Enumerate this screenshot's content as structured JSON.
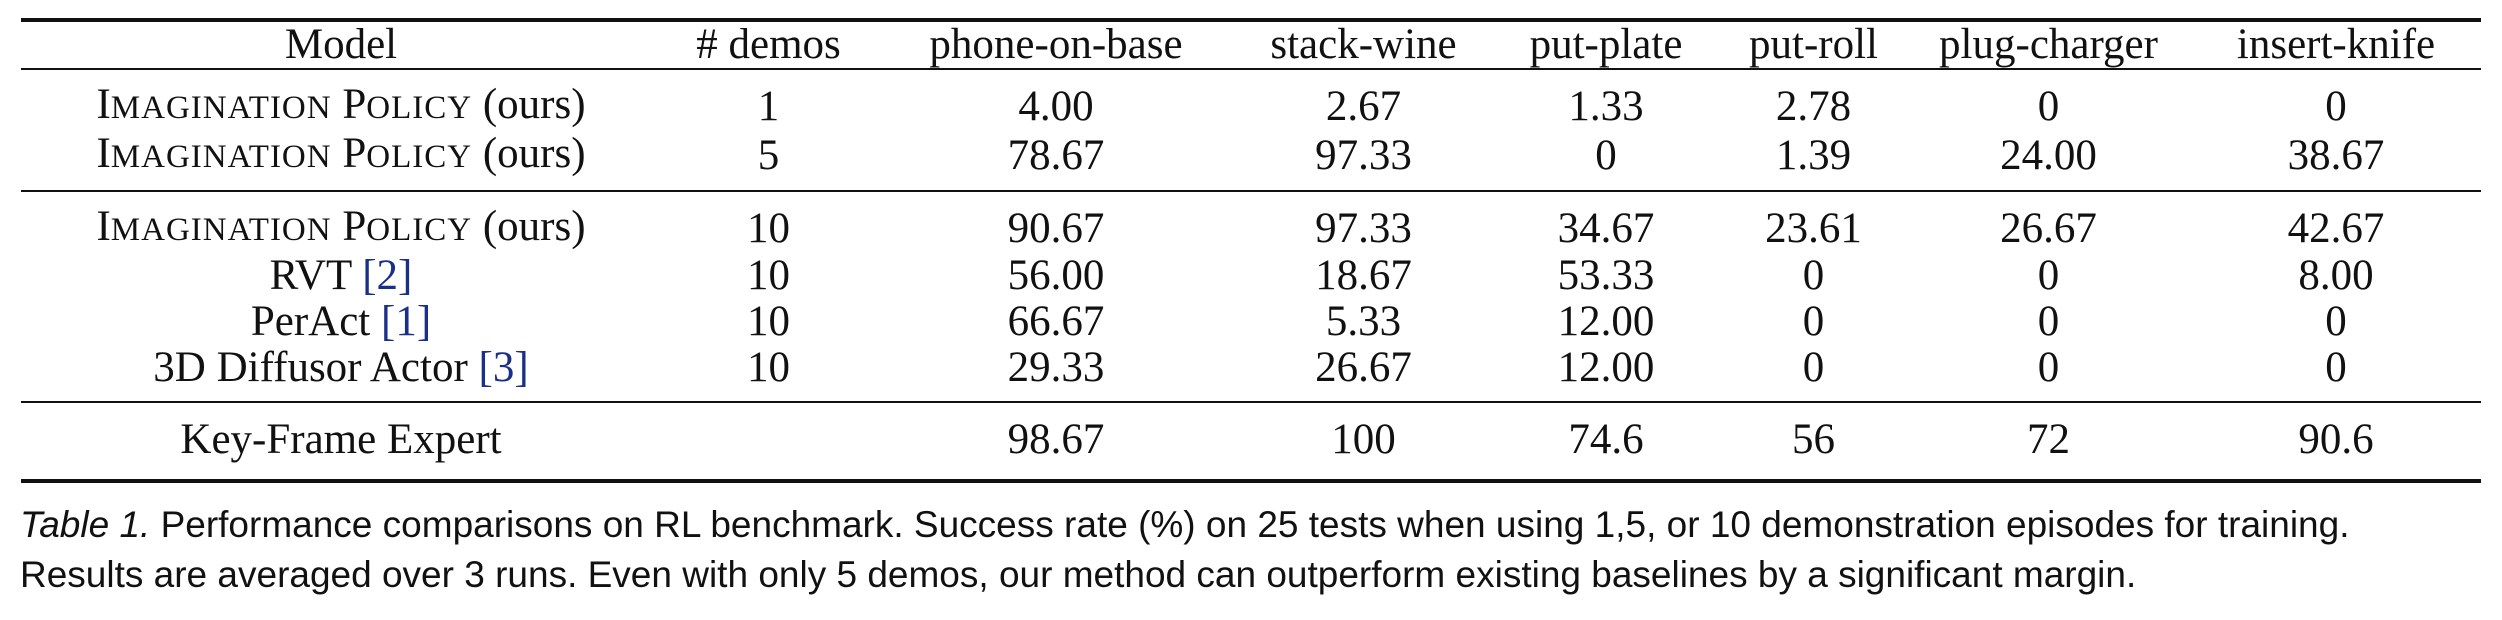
{
  "table": {
    "headers": [
      "Model",
      "# demos",
      "phone-on-base",
      "stack-wine",
      "put-plate",
      "put-roll",
      "plug-charger",
      "insert-knife"
    ],
    "groups": [
      {
        "rows": [
          {
            "model_sc": {
              "I": "I",
              "MAGINATION": "MAGINATION",
              "P": "P",
              "OLICY": "OLICY",
              "suffix": "(ours)"
            },
            "demos": "1",
            "values": [
              "4.00",
              "2.67",
              "1.33",
              "2.78",
              "0",
              "0"
            ]
          },
          {
            "model_sc": {
              "I": "I",
              "MAGINATION": "MAGINATION",
              "P": "P",
              "OLICY": "OLICY",
              "suffix": "(ours)"
            },
            "demos": "5",
            "values": [
              "78.67",
              "97.33",
              "0",
              "1.39",
              "24.00",
              "38.67"
            ]
          }
        ]
      },
      {
        "rows": [
          {
            "model_sc": {
              "I": "I",
              "MAGINATION": "MAGINATION",
              "P": "P",
              "OLICY": "OLICY",
              "suffix": "(ours)"
            },
            "demos": "10",
            "values": [
              "90.67",
              "97.33",
              "34.67",
              "23.61",
              "26.67",
              "42.67"
            ]
          },
          {
            "model": "RVT",
            "cite": "2",
            "demos": "10",
            "values": [
              "56.00",
              "18.67",
              "53.33",
              "0",
              "0",
              "8.00"
            ]
          },
          {
            "model": "PerAct",
            "cite": "1",
            "demos": "10",
            "values": [
              "66.67",
              "5.33",
              "12.00",
              "0",
              "0",
              "0"
            ]
          },
          {
            "model": "3D Diffusor Actor",
            "cite": "3",
            "demos": "10",
            "values": [
              "29.33",
              "26.67",
              "12.00",
              "0",
              "0",
              "0"
            ]
          }
        ]
      },
      {
        "rows": [
          {
            "model": "Key-Frame Expert",
            "demos": "",
            "values": [
              "98.67",
              "100",
              "74.6",
              "56",
              "72",
              "90.6"
            ]
          }
        ]
      }
    ]
  },
  "caption": {
    "label": "Table 1.",
    "text": " Performance comparisons on RL benchmark. Success rate (%) on 25 tests when using 1,5, or 10 demonstration episodes for training. Results are averaged over 3 runs. Even with only 5 demos, our method can outperform existing baselines by a significant margin."
  }
}
